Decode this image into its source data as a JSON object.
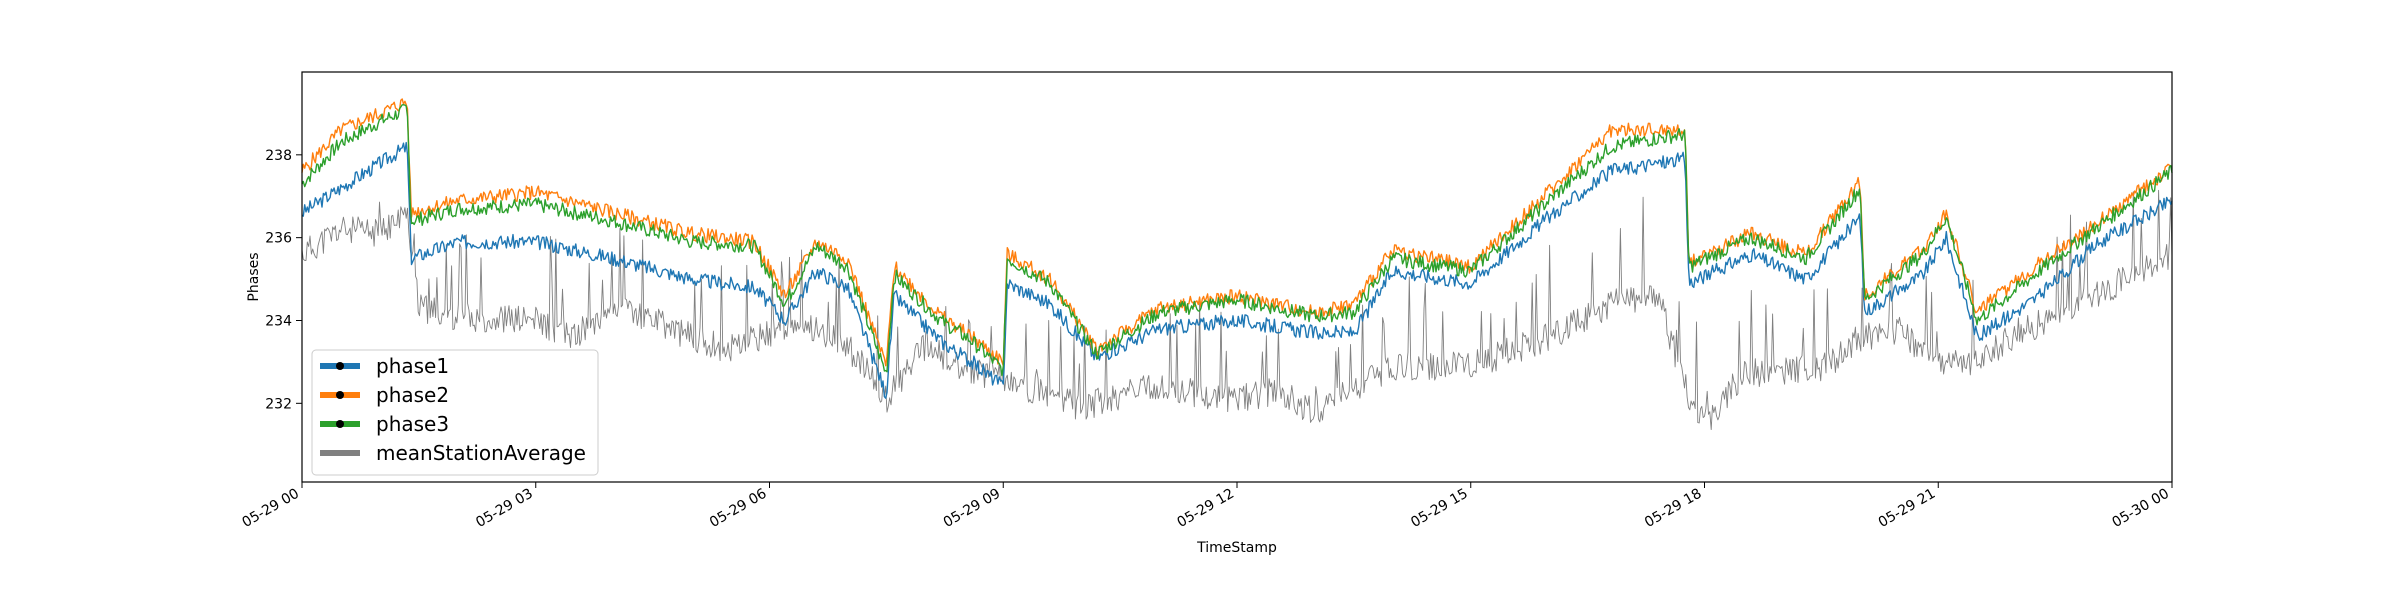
{
  "chart_data": {
    "type": "line",
    "xlabel": "TimeStamp",
    "ylabel": "Phases",
    "x_ticks": [
      "05-29 00",
      "05-29 03",
      "05-29 06",
      "05-29 09",
      "05-29 12",
      "05-29 15",
      "05-29 18",
      "05-29 21",
      "05-30 00"
    ],
    "x_range_hours": [
      0,
      24
    ],
    "y_ticks": [
      232,
      234,
      236,
      238
    ],
    "ylim": [
      230.1,
      240.0
    ],
    "grid": false,
    "legend_position": "lower-left",
    "legend": [
      "phase1",
      "phase2",
      "phase3",
      "meanStationAverage"
    ],
    "colors": {
      "phase1": "#1f77b4",
      "phase2": "#ff7f0e",
      "phase3": "#2ca02c",
      "meanStationAverage": "#808080"
    },
    "series": [
      {
        "name": "phase1",
        "x_hours": [
          0,
          0.5,
          1.0,
          1.35,
          1.4,
          2.0,
          3.0,
          4.0,
          5.0,
          5.8,
          6.2,
          6.6,
          7.0,
          7.5,
          7.6,
          8.2,
          8.6,
          9.0,
          9.05,
          9.6,
          10.2,
          11.0,
          12.0,
          13.0,
          13.5,
          14.0,
          15.0,
          16.0,
          16.8,
          17.4,
          17.75,
          17.8,
          18.6,
          19.3,
          20.0,
          20.05,
          20.8,
          21.1,
          21.5,
          22.3,
          23.0,
          24.0
        ],
        "y": [
          236.6,
          237.2,
          237.8,
          238.2,
          235.5,
          235.9,
          235.9,
          235.5,
          235.0,
          234.8,
          234.0,
          235.2,
          234.8,
          232.2,
          234.6,
          233.5,
          233.0,
          232.4,
          234.9,
          234.4,
          233.1,
          233.8,
          234.0,
          233.7,
          233.7,
          235.2,
          234.9,
          236.5,
          237.6,
          237.8,
          237.9,
          234.9,
          235.6,
          235.0,
          236.5,
          234.2,
          235.1,
          236.0,
          233.6,
          234.6,
          235.8,
          236.9
        ]
      },
      {
        "name": "phase2",
        "x_hours": [
          0,
          0.5,
          1.0,
          1.35,
          1.4,
          2.0,
          3.0,
          4.0,
          5.0,
          5.8,
          6.2,
          6.6,
          7.0,
          7.5,
          7.6,
          8.2,
          8.6,
          9.0,
          9.05,
          9.6,
          10.2,
          11.0,
          12.0,
          13.0,
          13.5,
          14.0,
          15.0,
          16.0,
          16.8,
          17.4,
          17.75,
          17.8,
          18.6,
          19.3,
          20.0,
          20.05,
          20.8,
          21.1,
          21.5,
          22.3,
          23.0,
          24.0
        ],
        "y": [
          237.6,
          238.6,
          239.0,
          239.3,
          236.6,
          236.9,
          237.1,
          236.6,
          236.1,
          235.9,
          234.6,
          235.9,
          235.5,
          232.9,
          235.3,
          234.1,
          233.6,
          233.0,
          235.6,
          235.0,
          233.3,
          234.3,
          234.6,
          234.2,
          234.4,
          235.7,
          235.3,
          237.1,
          238.6,
          238.6,
          238.6,
          235.4,
          236.1,
          235.6,
          237.4,
          234.6,
          235.7,
          236.6,
          234.2,
          235.4,
          236.3,
          237.7
        ]
      },
      {
        "name": "phase3",
        "x_hours": [
          0,
          0.5,
          1.0,
          1.35,
          1.4,
          2.0,
          3.0,
          4.0,
          5.0,
          5.8,
          6.2,
          6.6,
          7.0,
          7.5,
          7.6,
          8.2,
          8.6,
          9.0,
          9.05,
          9.6,
          10.2,
          11.0,
          12.0,
          13.0,
          13.5,
          14.0,
          15.0,
          16.0,
          16.8,
          17.4,
          17.75,
          17.8,
          18.6,
          19.3,
          20.0,
          20.05,
          20.8,
          21.1,
          21.5,
          22.3,
          23.0,
          24.0
        ],
        "y": [
          237.3,
          238.3,
          238.8,
          239.1,
          236.4,
          236.7,
          236.8,
          236.4,
          235.9,
          235.8,
          234.4,
          235.8,
          235.3,
          232.7,
          235.1,
          234.0,
          233.5,
          232.8,
          235.5,
          234.9,
          233.2,
          234.2,
          234.5,
          234.1,
          234.2,
          235.5,
          235.2,
          236.9,
          238.2,
          238.4,
          238.5,
          235.3,
          236.0,
          235.5,
          237.2,
          234.5,
          235.6,
          236.5,
          234.0,
          235.2,
          236.2,
          237.6
        ]
      },
      {
        "name": "meanStationAverage",
        "x_hours": [
          0,
          0.5,
          1.0,
          1.35,
          1.5,
          2.0,
          3.0,
          3.5,
          4.0,
          5.0,
          5.5,
          6.0,
          6.5,
          7.0,
          7.5,
          8.0,
          8.5,
          9.0,
          10.0,
          10.5,
          11.0,
          12.0,
          12.5,
          13.0,
          13.5,
          14.0,
          15.0,
          16.0,
          16.8,
          17.4,
          17.8,
          18.0,
          18.5,
          19.0,
          19.5,
          20.0,
          20.5,
          21.0,
          21.5,
          22.0,
          22.5,
          23.0,
          24.0
        ],
        "y": [
          235.6,
          236.2,
          236.1,
          236.6,
          234.3,
          234.1,
          234.0,
          233.6,
          234.4,
          233.6,
          233.3,
          233.7,
          233.9,
          233.4,
          232.1,
          233.4,
          232.8,
          232.6,
          231.9,
          232.2,
          232.4,
          232.1,
          232.3,
          231.8,
          232.3,
          232.9,
          232.9,
          233.6,
          234.4,
          234.6,
          232.1,
          231.5,
          232.7,
          232.8,
          232.8,
          233.6,
          233.8,
          232.9,
          233.0,
          233.7,
          234.1,
          234.6,
          235.6
        ]
      }
    ]
  }
}
